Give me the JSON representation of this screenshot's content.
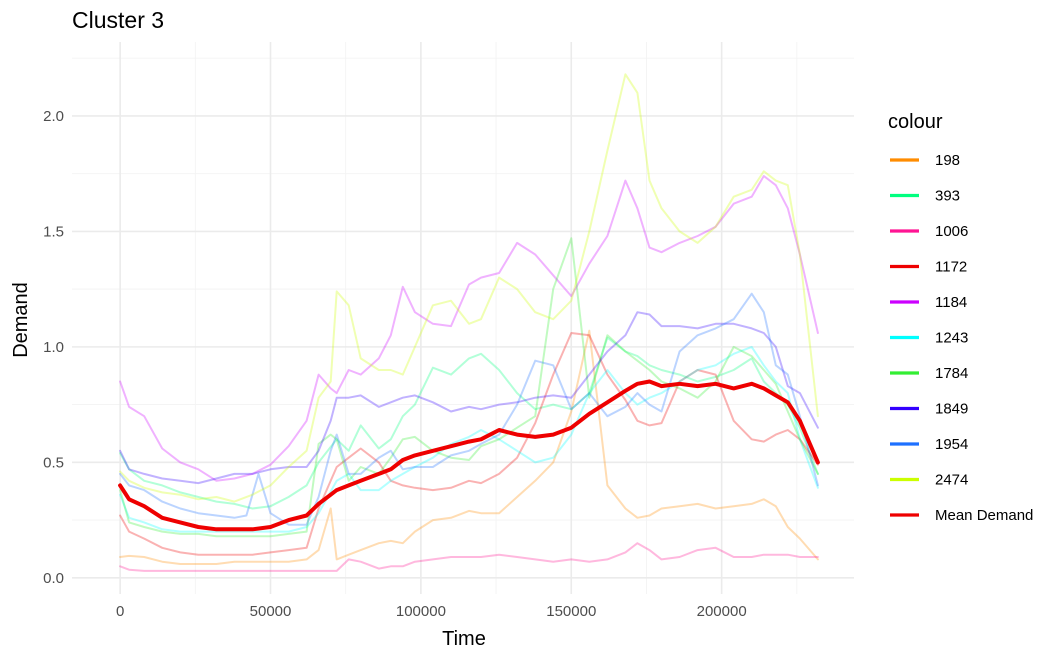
{
  "chart_data": {
    "type": "line",
    "title": "Cluster 3",
    "xlabel": "Time",
    "ylabel": "Demand",
    "xlim": [
      -16000,
      244000
    ],
    "ylim": [
      -0.07,
      2.32
    ],
    "x_ticks": [
      0,
      50000,
      100000,
      150000,
      200000
    ],
    "x_tick_labels": [
      "0",
      "50000",
      "100000",
      "150000",
      "200000"
    ],
    "y_ticks": [
      0.0,
      0.5,
      1.0,
      1.5,
      2.0
    ],
    "y_tick_labels": [
      "0.0",
      "0.5",
      "1.0",
      "1.5",
      "2.0"
    ],
    "grid": true,
    "legend": {
      "title": "colour",
      "placement": "right"
    },
    "series": [
      {
        "name": "198",
        "color": "#FF8C00",
        "opacity": 0.3,
        "x": [
          0,
          3000,
          8000,
          14000,
          20000,
          26000,
          32000,
          38000,
          44000,
          50000,
          56000,
          62000,
          66000,
          70000,
          72000,
          76000,
          80000,
          86000,
          90000,
          94000,
          98000,
          104000,
          110000,
          116000,
          120000,
          126000,
          132000,
          138000,
          144000,
          150000,
          156000,
          162000,
          168000,
          172000,
          176000,
          180000,
          186000,
          192000,
          198000,
          204000,
          210000,
          214000,
          218000,
          222000,
          226000,
          232000
        ],
        "y": [
          0.09,
          0.095,
          0.09,
          0.07,
          0.06,
          0.06,
          0.06,
          0.07,
          0.07,
          0.07,
          0.07,
          0.08,
          0.12,
          0.3,
          0.08,
          0.1,
          0.12,
          0.15,
          0.16,
          0.15,
          0.2,
          0.25,
          0.26,
          0.29,
          0.28,
          0.28,
          0.35,
          0.42,
          0.5,
          0.72,
          1.07,
          0.4,
          0.3,
          0.26,
          0.27,
          0.3,
          0.31,
          0.32,
          0.3,
          0.31,
          0.32,
          0.34,
          0.31,
          0.22,
          0.17,
          0.08
        ]
      },
      {
        "name": "393",
        "color": "#00FF7F",
        "opacity": 0.3,
        "x": [
          0,
          3000,
          8000,
          14000,
          20000,
          26000,
          32000,
          38000,
          44000,
          50000,
          56000,
          62000,
          66000,
          72000,
          76000,
          80000,
          86000,
          90000,
          94000,
          98000,
          104000,
          110000,
          116000,
          120000,
          126000,
          132000,
          138000,
          144000,
          150000,
          156000,
          162000,
          168000,
          172000,
          176000,
          180000,
          186000,
          192000,
          198000,
          204000,
          210000,
          214000,
          218000,
          222000,
          226000,
          232000
        ],
        "y": [
          0.54,
          0.47,
          0.42,
          0.4,
          0.37,
          0.35,
          0.33,
          0.32,
          0.3,
          0.31,
          0.35,
          0.4,
          0.5,
          0.6,
          0.55,
          0.66,
          0.56,
          0.6,
          0.7,
          0.75,
          0.91,
          0.88,
          0.95,
          0.97,
          0.9,
          0.8,
          0.73,
          0.75,
          0.73,
          0.8,
          1.04,
          0.98,
          0.96,
          0.92,
          0.9,
          0.88,
          0.85,
          0.87,
          0.9,
          0.95,
          0.85,
          0.8,
          0.75,
          0.65,
          0.45
        ]
      },
      {
        "name": "1006",
        "color": "#FF1493",
        "opacity": 0.3,
        "x": [
          0,
          3000,
          8000,
          14000,
          20000,
          26000,
          32000,
          38000,
          44000,
          50000,
          56000,
          62000,
          66000,
          72000,
          76000,
          80000,
          86000,
          90000,
          94000,
          98000,
          104000,
          110000,
          116000,
          120000,
          126000,
          132000,
          138000,
          144000,
          150000,
          156000,
          162000,
          168000,
          172000,
          176000,
          180000,
          186000,
          192000,
          198000,
          204000,
          210000,
          214000,
          218000,
          222000,
          226000,
          232000
        ],
        "y": [
          0.05,
          0.035,
          0.03,
          0.03,
          0.03,
          0.03,
          0.03,
          0.03,
          0.03,
          0.03,
          0.03,
          0.03,
          0.03,
          0.03,
          0.08,
          0.07,
          0.04,
          0.05,
          0.05,
          0.07,
          0.08,
          0.09,
          0.09,
          0.09,
          0.1,
          0.09,
          0.08,
          0.07,
          0.08,
          0.07,
          0.08,
          0.11,
          0.15,
          0.12,
          0.08,
          0.09,
          0.12,
          0.13,
          0.09,
          0.09,
          0.1,
          0.1,
          0.1,
          0.09,
          0.09
        ]
      },
      {
        "name": "1172",
        "color": "#EE0000",
        "opacity": 0.3,
        "x": [
          0,
          3000,
          8000,
          14000,
          20000,
          26000,
          32000,
          38000,
          44000,
          50000,
          56000,
          62000,
          66000,
          72000,
          76000,
          80000,
          86000,
          90000,
          94000,
          98000,
          104000,
          110000,
          116000,
          120000,
          126000,
          132000,
          138000,
          144000,
          150000,
          156000,
          162000,
          168000,
          172000,
          176000,
          180000,
          186000,
          192000,
          198000,
          204000,
          210000,
          214000,
          218000,
          222000,
          226000,
          232000
        ],
        "y": [
          0.27,
          0.2,
          0.17,
          0.13,
          0.11,
          0.1,
          0.1,
          0.1,
          0.1,
          0.11,
          0.12,
          0.13,
          0.3,
          0.48,
          0.52,
          0.56,
          0.5,
          0.42,
          0.4,
          0.39,
          0.38,
          0.39,
          0.42,
          0.41,
          0.45,
          0.52,
          0.67,
          0.88,
          1.06,
          1.05,
          0.88,
          0.77,
          0.68,
          0.66,
          0.67,
          0.85,
          0.9,
          0.88,
          0.68,
          0.6,
          0.59,
          0.62,
          0.64,
          0.6,
          0.49
        ]
      },
      {
        "name": "1184",
        "color": "#CC00FF",
        "opacity": 0.3,
        "x": [
          0,
          3000,
          8000,
          14000,
          20000,
          26000,
          32000,
          38000,
          44000,
          50000,
          56000,
          62000,
          66000,
          70000,
          72000,
          76000,
          80000,
          86000,
          90000,
          94000,
          98000,
          104000,
          110000,
          116000,
          120000,
          126000,
          132000,
          138000,
          144000,
          150000,
          156000,
          162000,
          168000,
          172000,
          176000,
          180000,
          186000,
          192000,
          198000,
          204000,
          210000,
          214000,
          218000,
          222000,
          226000,
          232000
        ],
        "y": [
          0.85,
          0.74,
          0.7,
          0.56,
          0.5,
          0.47,
          0.42,
          0.43,
          0.45,
          0.49,
          0.57,
          0.68,
          0.88,
          0.82,
          0.8,
          0.9,
          0.88,
          0.95,
          1.05,
          1.26,
          1.15,
          1.1,
          1.09,
          1.27,
          1.3,
          1.32,
          1.45,
          1.4,
          1.31,
          1.22,
          1.36,
          1.48,
          1.72,
          1.6,
          1.43,
          1.41,
          1.45,
          1.48,
          1.52,
          1.62,
          1.65,
          1.74,
          1.7,
          1.6,
          1.4,
          1.06
        ]
      },
      {
        "name": "1243",
        "color": "#00FFFF",
        "opacity": 0.3,
        "x": [
          0,
          3000,
          8000,
          14000,
          20000,
          26000,
          32000,
          38000,
          44000,
          50000,
          56000,
          62000,
          66000,
          72000,
          76000,
          80000,
          86000,
          90000,
          94000,
          98000,
          104000,
          110000,
          116000,
          120000,
          126000,
          132000,
          138000,
          144000,
          150000,
          156000,
          162000,
          168000,
          172000,
          176000,
          180000,
          186000,
          192000,
          198000,
          204000,
          210000,
          214000,
          218000,
          222000,
          226000,
          232000
        ],
        "y": [
          0.36,
          0.26,
          0.24,
          0.21,
          0.2,
          0.2,
          0.2,
          0.2,
          0.2,
          0.2,
          0.2,
          0.22,
          0.28,
          0.42,
          0.45,
          0.38,
          0.38,
          0.42,
          0.45,
          0.48,
          0.52,
          0.58,
          0.61,
          0.64,
          0.6,
          0.55,
          0.5,
          0.52,
          0.62,
          0.8,
          0.9,
          0.8,
          0.75,
          0.78,
          0.8,
          0.85,
          0.9,
          0.92,
          0.97,
          1.0,
          0.92,
          0.85,
          0.8,
          0.6,
          0.39
        ]
      },
      {
        "name": "1784",
        "color": "#33EE33",
        "opacity": 0.3,
        "x": [
          0,
          3000,
          8000,
          14000,
          20000,
          26000,
          32000,
          38000,
          44000,
          50000,
          56000,
          62000,
          66000,
          70000,
          72000,
          76000,
          80000,
          86000,
          90000,
          94000,
          98000,
          104000,
          110000,
          116000,
          120000,
          126000,
          132000,
          138000,
          144000,
          150000,
          156000,
          162000,
          168000,
          172000,
          176000,
          180000,
          186000,
          192000,
          198000,
          204000,
          210000,
          214000,
          218000,
          222000,
          226000,
          232000
        ],
        "y": [
          0.38,
          0.24,
          0.22,
          0.2,
          0.19,
          0.19,
          0.18,
          0.18,
          0.18,
          0.18,
          0.19,
          0.2,
          0.58,
          0.62,
          0.6,
          0.42,
          0.48,
          0.45,
          0.52,
          0.6,
          0.61,
          0.55,
          0.52,
          0.51,
          0.57,
          0.6,
          0.65,
          0.7,
          1.25,
          1.47,
          0.78,
          1.05,
          0.98,
          0.94,
          0.9,
          0.85,
          0.82,
          0.78,
          0.85,
          1.0,
          0.96,
          0.9,
          0.84,
          0.72,
          0.6,
          0.45
        ]
      },
      {
        "name": "1849",
        "color": "#3300FF",
        "opacity": 0.3,
        "x": [
          0,
          3000,
          8000,
          14000,
          20000,
          26000,
          32000,
          38000,
          44000,
          50000,
          56000,
          62000,
          66000,
          70000,
          72000,
          76000,
          80000,
          86000,
          90000,
          94000,
          98000,
          104000,
          110000,
          116000,
          120000,
          126000,
          132000,
          138000,
          144000,
          150000,
          156000,
          162000,
          168000,
          172000,
          176000,
          180000,
          186000,
          192000,
          198000,
          204000,
          210000,
          214000,
          218000,
          222000,
          226000,
          232000
        ],
        "y": [
          0.55,
          0.47,
          0.45,
          0.43,
          0.42,
          0.41,
          0.43,
          0.45,
          0.45,
          0.47,
          0.48,
          0.48,
          0.55,
          0.68,
          0.78,
          0.78,
          0.79,
          0.74,
          0.76,
          0.78,
          0.79,
          0.76,
          0.72,
          0.74,
          0.73,
          0.75,
          0.76,
          0.78,
          0.79,
          0.78,
          0.88,
          0.98,
          1.05,
          1.15,
          1.14,
          1.09,
          1.09,
          1.08,
          1.1,
          1.1,
          1.08,
          1.06,
          1.0,
          0.83,
          0.8,
          0.65
        ]
      },
      {
        "name": "1954",
        "color": "#1E70FF",
        "opacity": 0.3,
        "x": [
          0,
          3000,
          8000,
          14000,
          20000,
          26000,
          32000,
          38000,
          42000,
          46000,
          50000,
          56000,
          62000,
          66000,
          70000,
          72000,
          76000,
          80000,
          86000,
          90000,
          94000,
          98000,
          104000,
          110000,
          116000,
          120000,
          126000,
          132000,
          138000,
          144000,
          150000,
          156000,
          162000,
          168000,
          172000,
          176000,
          180000,
          186000,
          192000,
          198000,
          204000,
          210000,
          214000,
          218000,
          222000,
          226000,
          232000
        ],
        "y": [
          0.45,
          0.4,
          0.38,
          0.33,
          0.3,
          0.28,
          0.27,
          0.26,
          0.27,
          0.45,
          0.28,
          0.23,
          0.23,
          0.35,
          0.55,
          0.62,
          0.45,
          0.45,
          0.52,
          0.55,
          0.47,
          0.48,
          0.48,
          0.53,
          0.55,
          0.58,
          0.62,
          0.75,
          0.94,
          0.92,
          0.73,
          0.8,
          0.7,
          0.74,
          0.8,
          0.75,
          0.72,
          0.98,
          1.05,
          1.08,
          1.12,
          1.23,
          1.15,
          0.92,
          0.88,
          0.7,
          0.4
        ]
      },
      {
        "name": "2474",
        "color": "#CCFF00",
        "opacity": 0.3,
        "x": [
          0,
          3000,
          8000,
          14000,
          20000,
          26000,
          32000,
          38000,
          44000,
          50000,
          56000,
          62000,
          66000,
          70000,
          72000,
          76000,
          80000,
          86000,
          90000,
          94000,
          98000,
          104000,
          110000,
          116000,
          120000,
          126000,
          132000,
          138000,
          144000,
          150000,
          156000,
          162000,
          168000,
          172000,
          176000,
          180000,
          186000,
          192000,
          198000,
          204000,
          210000,
          214000,
          218000,
          222000,
          226000,
          232000
        ],
        "y": [
          0.46,
          0.42,
          0.39,
          0.37,
          0.36,
          0.34,
          0.35,
          0.33,
          0.36,
          0.4,
          0.48,
          0.55,
          0.78,
          0.85,
          1.24,
          1.18,
          0.95,
          0.9,
          0.9,
          0.88,
          1.0,
          1.18,
          1.2,
          1.1,
          1.12,
          1.3,
          1.25,
          1.15,
          1.12,
          1.2,
          1.5,
          1.85,
          2.18,
          2.1,
          1.72,
          1.6,
          1.5,
          1.45,
          1.52,
          1.65,
          1.68,
          1.76,
          1.72,
          1.7,
          1.4,
          0.7
        ]
      },
      {
        "name": "Mean Demand",
        "color": "#EE0000",
        "opacity": 1.0,
        "width": 4,
        "x": [
          0,
          3000,
          8000,
          14000,
          20000,
          26000,
          32000,
          38000,
          44000,
          50000,
          56000,
          62000,
          66000,
          70000,
          72000,
          76000,
          80000,
          86000,
          90000,
          94000,
          98000,
          104000,
          110000,
          116000,
          120000,
          126000,
          132000,
          138000,
          144000,
          150000,
          156000,
          162000,
          168000,
          172000,
          176000,
          180000,
          186000,
          192000,
          198000,
          204000,
          210000,
          214000,
          218000,
          222000,
          226000,
          232000
        ],
        "y": [
          0.4,
          0.34,
          0.31,
          0.26,
          0.24,
          0.22,
          0.21,
          0.21,
          0.21,
          0.22,
          0.25,
          0.27,
          0.32,
          0.36,
          0.38,
          0.4,
          0.42,
          0.45,
          0.47,
          0.51,
          0.53,
          0.55,
          0.57,
          0.59,
          0.6,
          0.64,
          0.62,
          0.61,
          0.62,
          0.65,
          0.71,
          0.76,
          0.81,
          0.84,
          0.85,
          0.83,
          0.84,
          0.83,
          0.84,
          0.82,
          0.84,
          0.82,
          0.79,
          0.76,
          0.68,
          0.5
        ]
      }
    ]
  }
}
